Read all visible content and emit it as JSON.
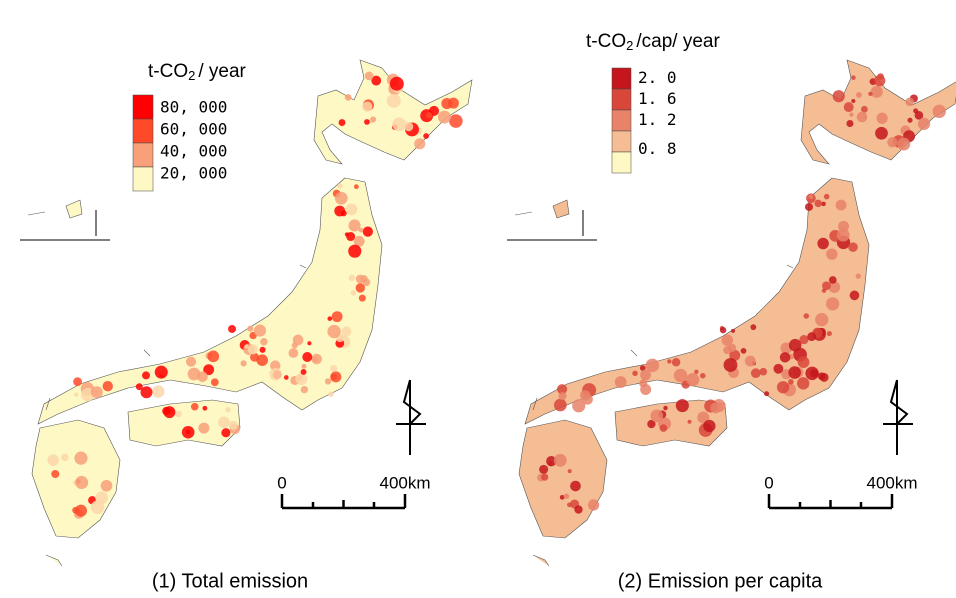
{
  "maps": [
    {
      "legend": {
        "title_prefix": "t-CO",
        "title_sub": "2",
        "title_suffix": "/ year",
        "labels": [
          "80, 000",
          "60, 000",
          "40, 000",
          "20, 000"
        ],
        "colors": [
          "#ff0000",
          "#ff4a2a",
          "#f8a07a",
          "#fcd6a8",
          "#fdf8c4"
        ]
      },
      "scale": {
        "start": "0",
        "end": "400km"
      },
      "caption": "(1) Total emission"
    },
    {
      "legend": {
        "title_prefix": "t-CO",
        "title_sub": "2",
        "title_suffix": "/cap/ year",
        "labels": [
          "2. 0",
          "1. 6",
          "1. 2",
          "0. 8"
        ],
        "colors": [
          "#c4161c",
          "#d9473a",
          "#e8836a",
          "#f4bd94",
          "#fef8c4"
        ]
      },
      "scale": {
        "start": "0",
        "end": "400km"
      },
      "caption": "(2) Emission per capita"
    }
  ]
}
